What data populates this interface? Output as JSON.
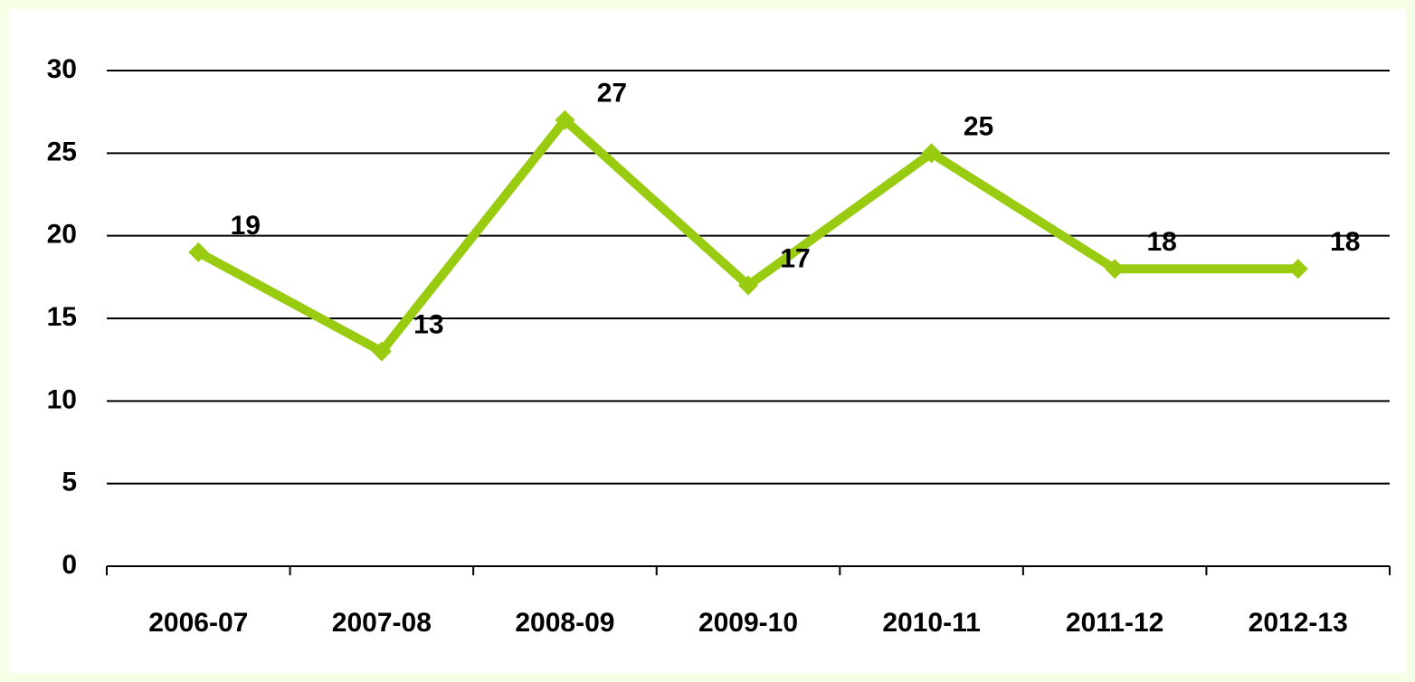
{
  "chart_data": {
    "type": "line",
    "categories": [
      "2006-07",
      "2007-08",
      "2008-09",
      "2009-10",
      "2010-11",
      "2011-12",
      "2012-13"
    ],
    "series": [
      {
        "name": null,
        "color": "#99cc11",
        "values": [
          19,
          13,
          27,
          17,
          25,
          18,
          18
        ]
      }
    ],
    "ylim": [
      0,
      30
    ],
    "yticks": [
      0,
      5,
      10,
      15,
      20,
      25,
      30
    ],
    "grid": true,
    "data_labels": true
  }
}
